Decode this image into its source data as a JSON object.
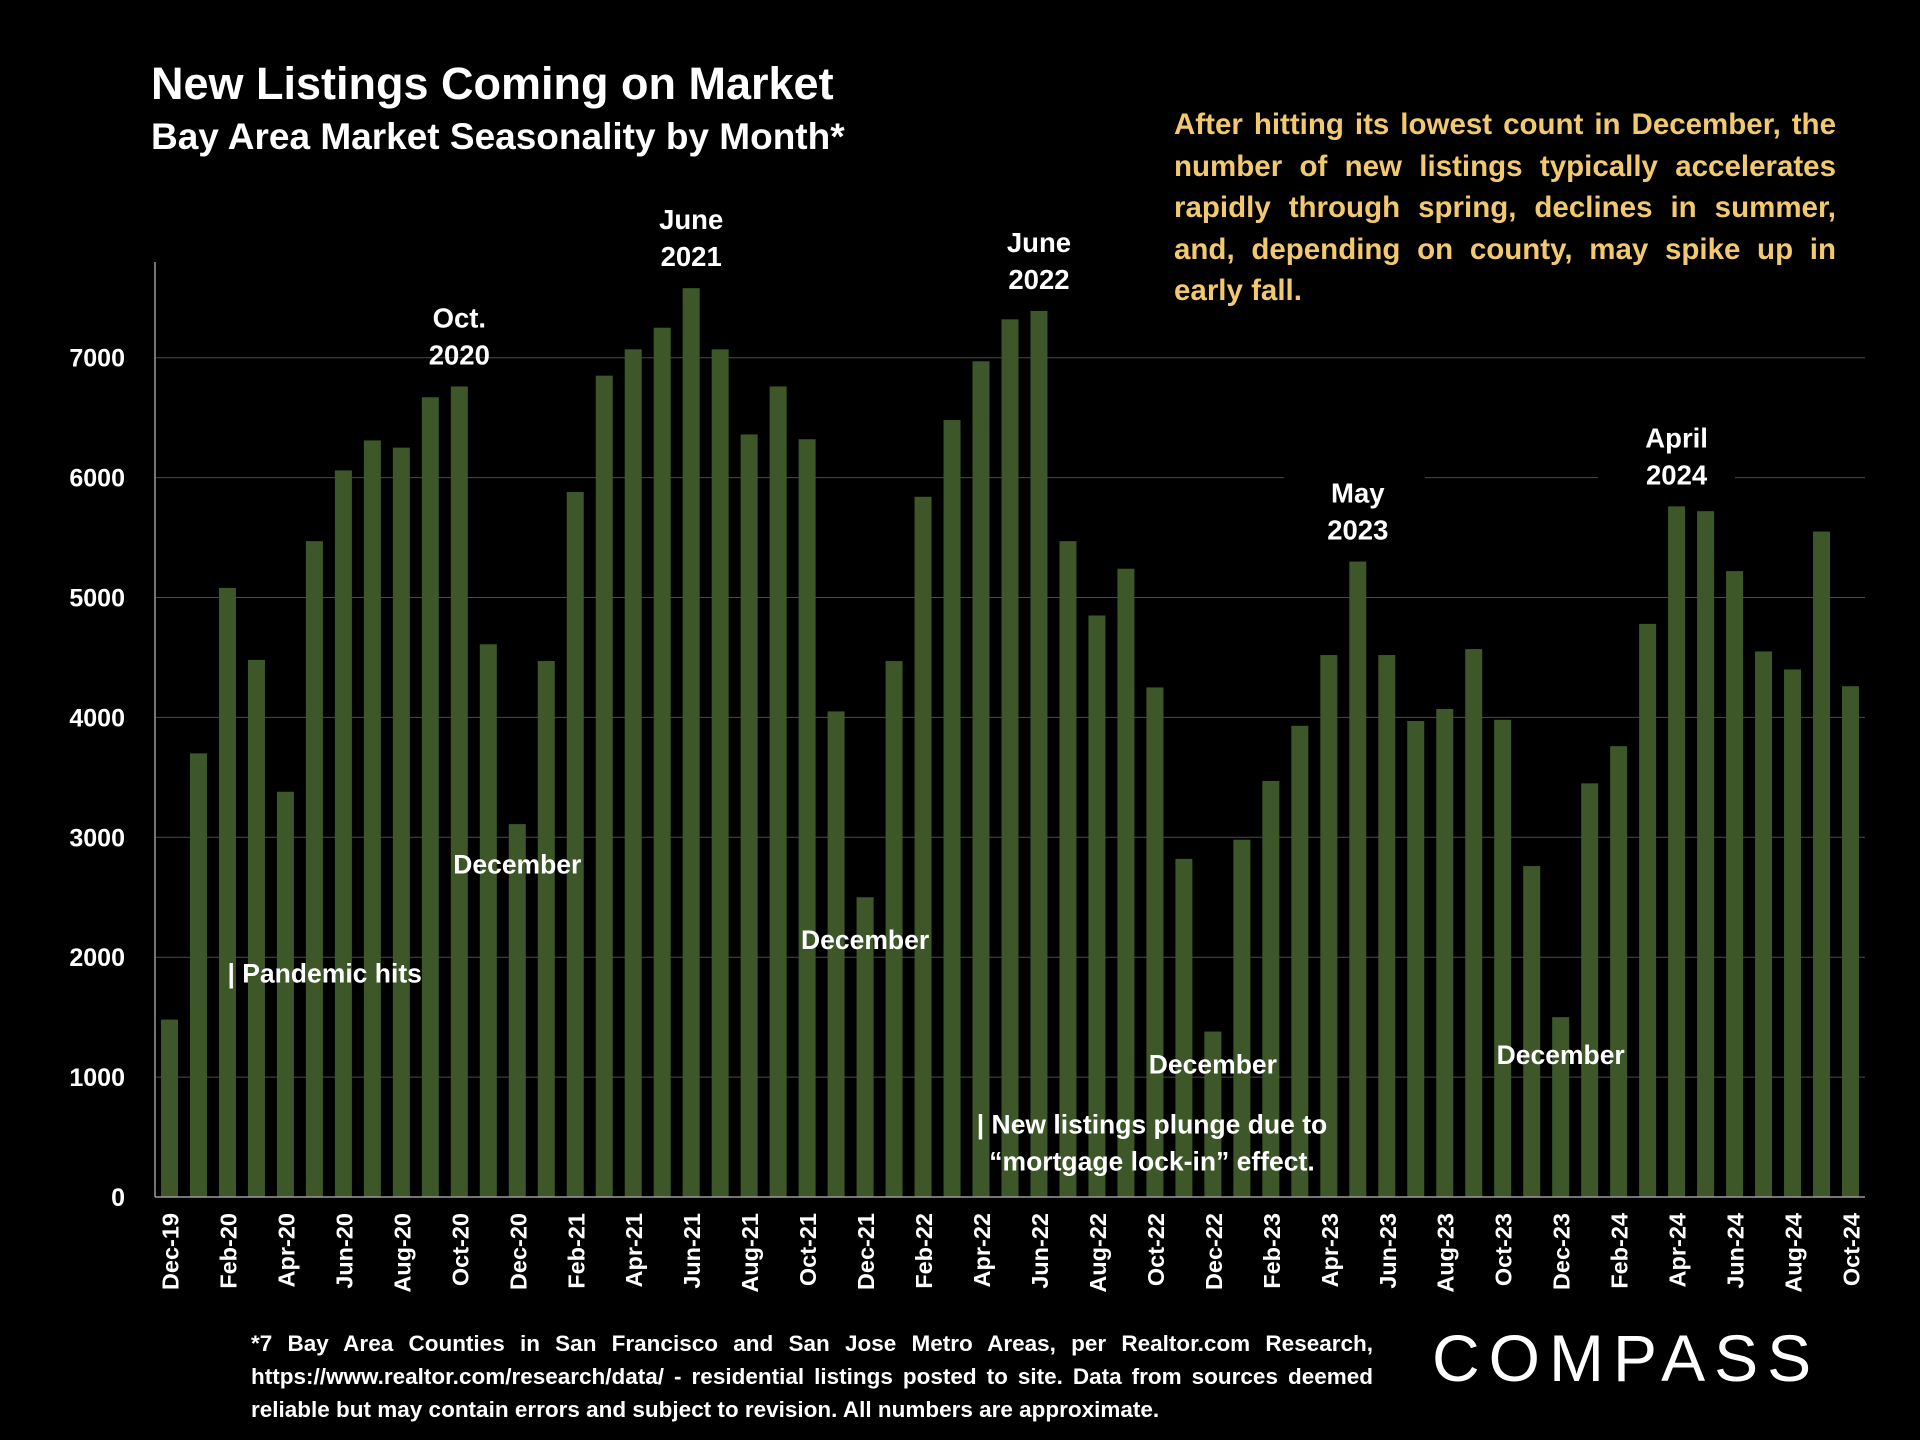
{
  "title": "New Listings Coming on Market",
  "subtitle": "Bay Area Market Seasonality by Month*",
  "note": "After hitting its lowest count in December, the number of new listings typically accelerates rapidly through spring, declines in summer, and, depending on county, may spike up in early fall.",
  "footnote": "*7 Bay Area Counties in San Francisco and San Jose Metro Areas, per Realtor.com Research, https://www.realtor.com/research/data/ - residential listings posted to site.  Data from sources deemed reliable but may contain errors and subject to revision. All numbers are approximate.",
  "logo": "COMPASS",
  "colors": {
    "bar": "#3e5729",
    "note": "#f2c96f",
    "grid": "#4a4a4a",
    "background": "#000000"
  },
  "chart_data": {
    "type": "bar",
    "title": "New Listings Coming on Market",
    "subtitle": "Bay Area Market Seasonality by Month*",
    "ylim": [
      0,
      7800
    ],
    "yticks": [
      0,
      1000,
      2000,
      3000,
      4000,
      5000,
      6000,
      7000
    ],
    "grid": true,
    "categories": [
      "Dec-19",
      "Jan-20",
      "Feb-20",
      "Mar-20",
      "Apr-20",
      "May-20",
      "Jun-20",
      "Jul-20",
      "Aug-20",
      "Sep-20",
      "Oct-20",
      "Nov-20",
      "Dec-20",
      "Jan-21",
      "Feb-21",
      "Mar-21",
      "Apr-21",
      "May-21",
      "Jun-21",
      "Jul-21",
      "Aug-21",
      "Sep-21",
      "Oct-21",
      "Nov-21",
      "Dec-21",
      "Jan-22",
      "Feb-22",
      "Mar-22",
      "Apr-22",
      "May-22",
      "Jun-22",
      "Jul-22",
      "Aug-22",
      "Sep-22",
      "Oct-22",
      "Nov-22",
      "Dec-22",
      "Jan-23",
      "Feb-23",
      "Mar-23",
      "Apr-23",
      "May-23",
      "Jun-23",
      "Jul-23",
      "Aug-23",
      "Sep-23",
      "Oct-23",
      "Nov-23",
      "Dec-23",
      "Jan-24",
      "Feb-24",
      "Mar-24",
      "Apr-24",
      "May-24",
      "Jun-24",
      "Jul-24",
      "Aug-24",
      "Sep-24",
      "Oct-24"
    ],
    "values": [
      1480,
      3700,
      5080,
      4480,
      3380,
      5470,
      6060,
      6310,
      6250,
      6670,
      6760,
      4610,
      3110,
      4470,
      5880,
      6850,
      7070,
      7250,
      7580,
      7070,
      6360,
      6760,
      6320,
      4050,
      2500,
      4470,
      5840,
      6480,
      6970,
      7320,
      7390,
      5470,
      4850,
      5240,
      4250,
      2820,
      1380,
      2980,
      3470,
      3930,
      4520,
      5300,
      4520,
      3970,
      4070,
      4570,
      3980,
      2760,
      1500,
      3450,
      3760,
      4780,
      5760,
      5720,
      5220,
      4550,
      4400,
      5550,
      4260
    ],
    "xtick_labels": [
      "Dec-19",
      "Feb-20",
      "Apr-20",
      "Jun-20",
      "Aug-20",
      "Oct-20",
      "Dec-20",
      "Feb-21",
      "Apr-21",
      "Jun-21",
      "Aug-21",
      "Oct-21",
      "Dec-21",
      "Feb-22",
      "Apr-22",
      "Jun-22",
      "Aug-22",
      "Oct-22",
      "Dec-22",
      "Feb-23",
      "Apr-23",
      "Jun-23",
      "Aug-23",
      "Oct-23",
      "Dec-23",
      "Feb-24",
      "Apr-24",
      "Jun-24",
      "Aug-24",
      "Oct-24"
    ],
    "peak_annotations": [
      {
        "index": 10,
        "lines": [
          "Oct.",
          "2020"
        ]
      },
      {
        "index": 18,
        "lines": [
          "June",
          "2021"
        ]
      },
      {
        "index": 30,
        "lines": [
          "June",
          "2022"
        ]
      },
      {
        "index": 41,
        "lines": [
          "May",
          "2023"
        ]
      },
      {
        "index": 52,
        "lines": [
          "April",
          "2024"
        ]
      }
    ],
    "text_annotations": [
      {
        "index": 12,
        "value": 2700,
        "lines": [
          "December"
        ]
      },
      {
        "index": 24,
        "value": 2070,
        "lines": [
          "December"
        ]
      },
      {
        "index": 36,
        "value": 1030,
        "lines": [
          "December"
        ]
      },
      {
        "index": 48,
        "value": 1110,
        "lines": [
          "December"
        ]
      },
      {
        "index": 2.1,
        "value": 1790,
        "lines": [
          "| Pandemic hits"
        ],
        "align": "start"
      },
      {
        "index": 33.9,
        "value": 530,
        "lines": [
          "| New listings plunge due to",
          "“mortgage lock-in” effect."
        ]
      }
    ]
  }
}
